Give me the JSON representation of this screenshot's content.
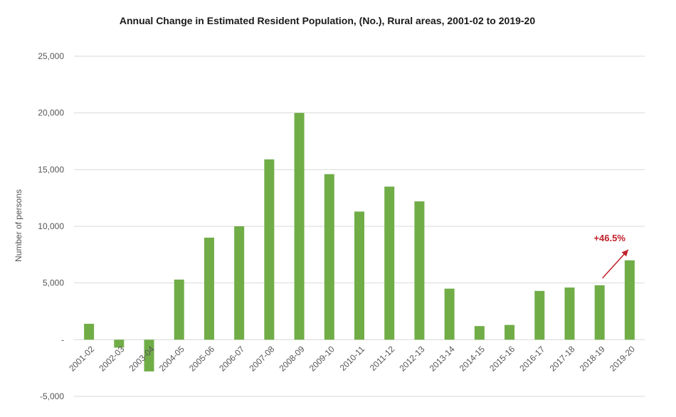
{
  "chart_data": {
    "type": "bar",
    "title": "Annual Change in Estimated Resident Population, (No.), Rural areas, 2001-02 to 2019-20",
    "xlabel": "",
    "ylabel": "Number of persons",
    "categories": [
      "2001-02",
      "2002-03",
      "2003-04",
      "2004-05",
      "2005-06",
      "2006-07",
      "2007-08",
      "2008-09",
      "2009-10",
      "2010-11",
      "2011-12",
      "2012-13",
      "2013-14",
      "2014-15",
      "2015-16",
      "2016-17",
      "2017-18",
      "2018-19",
      "2019-20"
    ],
    "values": [
      1400,
      -700,
      -2800,
      5300,
      9000,
      10000,
      15900,
      20000,
      14600,
      11300,
      13500,
      12200,
      4500,
      1200,
      1300,
      4300,
      4600,
      4800,
      7000
    ],
    "ylim": [
      -5000,
      25000
    ],
    "yticks": [
      -5000,
      0,
      5000,
      10000,
      15000,
      20000,
      25000
    ],
    "ytick_labels": [
      "-5,000",
      "-",
      "5,000",
      "10,000",
      "15,000",
      "20,000",
      "25,000"
    ],
    "grid": true,
    "bar_color": "#70ad47",
    "annotation": {
      "text": "+46.5%",
      "color": "#c0202a",
      "from_category": "2018-19",
      "to_category": "2019-20"
    }
  }
}
